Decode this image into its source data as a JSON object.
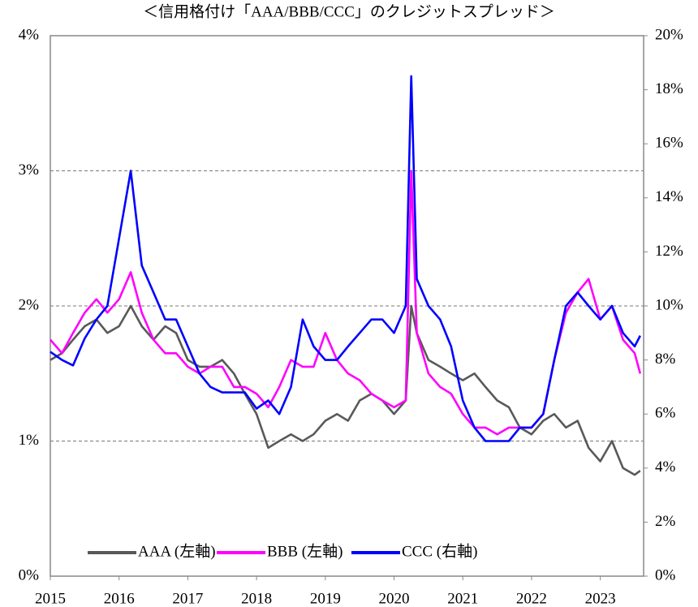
{
  "chart_data": {
    "type": "line",
    "title": "＜信用格付け「AAA/BBB/CCC」のクレジットスプレッド＞",
    "x": [
      2015,
      2015.17,
      2015.33,
      2015.5,
      2015.67,
      2015.83,
      2016,
      2016.17,
      2016.33,
      2016.5,
      2016.67,
      2016.83,
      2017,
      2017.17,
      2017.33,
      2017.5,
      2017.67,
      2017.83,
      2018,
      2018.17,
      2018.33,
      2018.5,
      2018.67,
      2018.83,
      2019,
      2019.17,
      2019.33,
      2019.5,
      2019.67,
      2019.83,
      2020,
      2020.17,
      2020.25,
      2020.33,
      2020.5,
      2020.67,
      2020.83,
      2021,
      2021.17,
      2021.33,
      2021.5,
      2021.67,
      2021.83,
      2022,
      2022.17,
      2022.33,
      2022.5,
      2022.67,
      2022.83,
      2023,
      2023.17,
      2023.33,
      2023.5,
      2023.58
    ],
    "series": [
      {
        "name": "AAA (左軸)",
        "color": "#595959",
        "axis": "y",
        "values": [
          1.6,
          1.65,
          1.75,
          1.85,
          1.9,
          1.8,
          1.85,
          2.0,
          1.85,
          1.75,
          1.85,
          1.8,
          1.6,
          1.55,
          1.55,
          1.6,
          1.5,
          1.35,
          1.2,
          0.95,
          1.0,
          1.05,
          1.0,
          1.05,
          1.15,
          1.2,
          1.15,
          1.3,
          1.35,
          1.3,
          1.2,
          1.3,
          2.0,
          1.8,
          1.6,
          1.55,
          1.5,
          1.45,
          1.5,
          1.4,
          1.3,
          1.25,
          1.1,
          1.05,
          1.15,
          1.2,
          1.1,
          1.15,
          0.95,
          0.85,
          1.0,
          0.8,
          0.75,
          0.78
        ]
      },
      {
        "name": "BBB (左軸)",
        "color": "#ff00ff",
        "axis": "y",
        "values": [
          1.75,
          1.65,
          1.8,
          1.95,
          2.05,
          1.95,
          2.05,
          2.25,
          1.95,
          1.75,
          1.65,
          1.65,
          1.55,
          1.5,
          1.55,
          1.55,
          1.4,
          1.4,
          1.35,
          1.25,
          1.4,
          1.6,
          1.55,
          1.55,
          1.8,
          1.6,
          1.5,
          1.45,
          1.35,
          1.3,
          1.25,
          1.3,
          3.0,
          1.8,
          1.5,
          1.4,
          1.35,
          1.2,
          1.1,
          1.1,
          1.05,
          1.1,
          1.1,
          1.1,
          1.2,
          1.6,
          1.95,
          2.1,
          2.2,
          1.9,
          2.0,
          1.75,
          1.65,
          1.5
        ]
      },
      {
        "name": "CCC (右軸)",
        "color": "#0000ff",
        "axis": "y2",
        "values": [
          8.3,
          8.0,
          7.8,
          8.8,
          9.5,
          10.0,
          12.5,
          15.0,
          11.5,
          10.5,
          9.5,
          9.5,
          8.5,
          7.5,
          7.0,
          6.8,
          6.8,
          6.8,
          6.2,
          6.5,
          6.0,
          7.0,
          9.5,
          8.5,
          8.0,
          8.0,
          8.5,
          9.0,
          9.5,
          9.5,
          9.0,
          10.0,
          18.5,
          11.0,
          10.0,
          9.5,
          8.5,
          6.5,
          5.5,
          5.0,
          5.0,
          5.0,
          5.5,
          5.5,
          6.0,
          8.0,
          10.0,
          10.5,
          10.0,
          9.5,
          10.0,
          9.0,
          8.5,
          8.9
        ]
      }
    ],
    "xlim": [
      2015,
      2023.63
    ],
    "xticks": [
      2015,
      2016,
      2017,
      2018,
      2019,
      2020,
      2021,
      2022,
      2023
    ],
    "ylim": [
      0,
      4
    ],
    "yticks": [
      {
        "value": 0,
        "label": "0%"
      },
      {
        "value": 1,
        "label": "1%"
      },
      {
        "value": 2,
        "label": "2%"
      },
      {
        "value": 3,
        "label": "3%"
      },
      {
        "value": 4,
        "label": "4%"
      }
    ],
    "y2lim": [
      0,
      20
    ],
    "y2ticks": [
      {
        "value": 0,
        "label": "0%"
      },
      {
        "value": 2,
        "label": "2%"
      },
      {
        "value": 4,
        "label": "4%"
      },
      {
        "value": 6,
        "label": "6%"
      },
      {
        "value": 8,
        "label": "8%"
      },
      {
        "value": 10,
        "label": "10%"
      },
      {
        "value": 12,
        "label": "12%"
      },
      {
        "value": 14,
        "label": "14%"
      },
      {
        "value": 16,
        "label": "16%"
      },
      {
        "value": 18,
        "label": "18%"
      },
      {
        "value": 20,
        "label": "20%"
      }
    ],
    "grid": true,
    "legend": "bottom"
  }
}
